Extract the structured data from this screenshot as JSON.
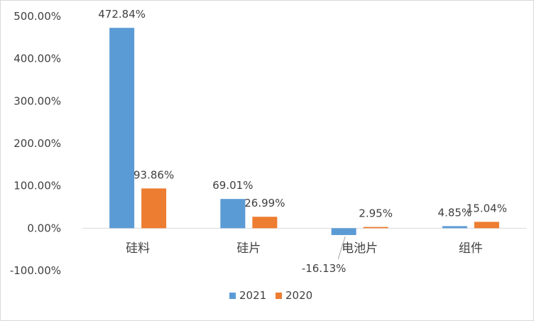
{
  "chart_data": {
    "type": "bar",
    "categories": [
      "硅料",
      "硅片",
      "电池片",
      "组件"
    ],
    "series": [
      {
        "name": "2021",
        "color": "#5b9bd5",
        "values": [
          472.84,
          69.01,
          -16.13,
          4.85
        ],
        "labels": [
          "472.84%",
          "69.01%",
          "-16.13%",
          "4.85%"
        ]
      },
      {
        "name": "2020",
        "color": "#ed7d31",
        "values": [
          93.86,
          26.99,
          2.95,
          15.04
        ],
        "labels": [
          "93.86%",
          "26.99%",
          "2.95%",
          "15.04%"
        ]
      }
    ],
    "ylim": [
      -100,
      500
    ],
    "yticks": [
      "-100.00%",
      "0.00%",
      "100.00%",
      "200.00%",
      "300.00%",
      "400.00%",
      "500.00%"
    ],
    "ytick_values": [
      -100,
      0,
      100,
      200,
      300,
      400,
      500
    ],
    "grid": false,
    "legend_position": "bottom",
    "title": "",
    "xlabel": "",
    "ylabel": ""
  }
}
